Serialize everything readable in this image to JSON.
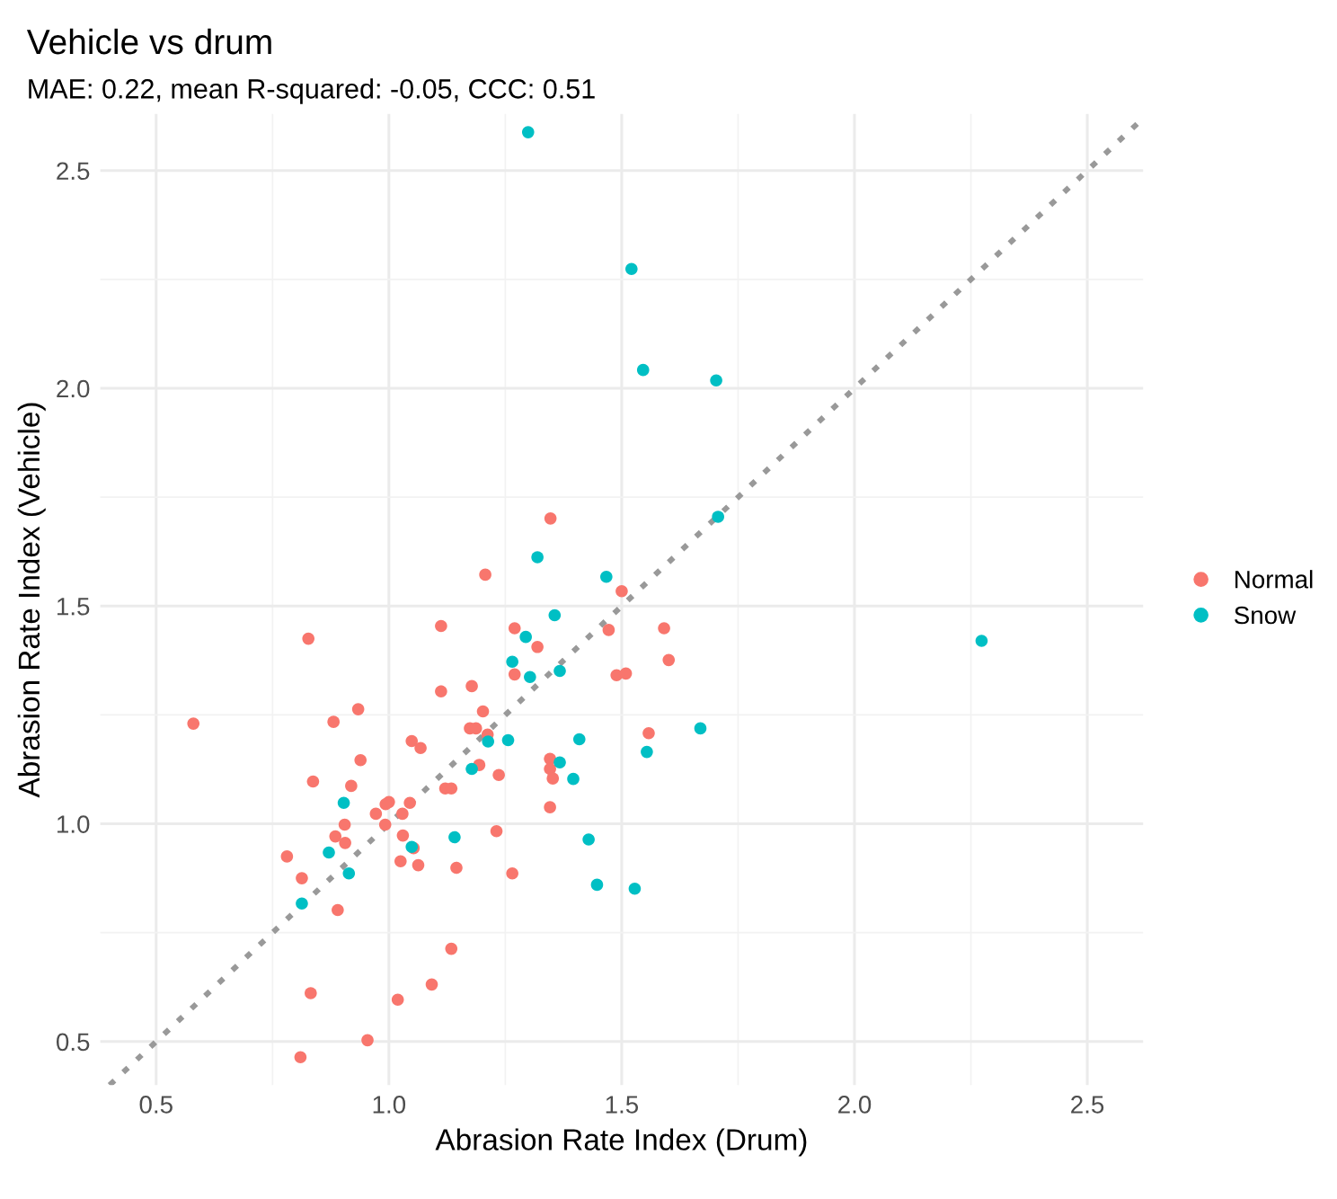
{
  "chart_data": {
    "type": "scatter",
    "title": "Vehicle vs drum",
    "subtitle": "MAE: 0.22, mean R-squared: -0.05, CCC: 0.51",
    "xlabel": "Abrasion Rate Index (Drum)",
    "ylabel": "Abrasion Rate Index (Vehicle)",
    "xlim": [
      0.38,
      2.62
    ],
    "ylim": [
      0.4,
      2.63
    ],
    "xticks": [
      0.5,
      {
        "value": 1.0,
        "label": "1.0"
      },
      1.5,
      {
        "value": 2.0,
        "label": "2.0"
      },
      2.5
    ],
    "yticks": [
      0.5,
      {
        "value": 1.0,
        "label": "1.0"
      },
      1.5,
      {
        "value": 2.0,
        "label": "2.0"
      },
      2.5
    ],
    "grid": true,
    "legend": "right",
    "marker": "circle",
    "series": [
      {
        "name": "Normal",
        "color": "#f8766d",
        "x": [
          0.58,
          0.827,
          1.112,
          1.112,
          0.934,
          0.881,
          1.049,
          1.068,
          0.939,
          0.837,
          0.919,
          1.121,
          1.134,
          1.0,
          0.993,
          1.045,
          0.972,
          1.029,
          0.905,
          0.992,
          0.885,
          0.906,
          1.03,
          1.053,
          0.781,
          1.025,
          1.063,
          0.813,
          0.89,
          1.134,
          0.832,
          1.092,
          1.019,
          0.954,
          0.81,
          1.207,
          1.5,
          1.27,
          1.472,
          1.591,
          1.319,
          1.601,
          1.27,
          1.489,
          1.509,
          1.178,
          1.202,
          1.174,
          1.187,
          1.212,
          1.558,
          1.346,
          1.346,
          1.352,
          1.194,
          1.236,
          1.346,
          1.231,
          1.145,
          1.265,
          1.347
        ],
        "values": [
          1.23,
          1.425,
          1.454,
          1.304,
          1.263,
          1.234,
          1.19,
          1.174,
          1.146,
          1.097,
          1.087,
          1.081,
          1.081,
          1.05,
          1.045,
          1.048,
          1.023,
          1.023,
          0.998,
          0.998,
          0.971,
          0.956,
          0.973,
          0.944,
          0.925,
          0.914,
          0.905,
          0.875,
          0.802,
          0.713,
          0.611,
          0.631,
          0.596,
          0.503,
          0.464,
          1.572,
          1.534,
          1.449,
          1.445,
          1.449,
          1.406,
          1.376,
          1.343,
          1.341,
          1.345,
          1.316,
          1.258,
          1.219,
          1.219,
          1.205,
          1.208,
          1.149,
          1.126,
          1.104,
          1.135,
          1.112,
          1.038,
          0.983,
          0.899,
          0.886,
          1.701
        ]
      },
      {
        "name": "Snow",
        "color": "#00bfc4",
        "x": [
          0.903,
          1.049,
          0.871,
          1.141,
          0.914,
          0.813,
          1.319,
          1.467,
          1.356,
          1.294,
          1.265,
          1.303,
          1.367,
          1.213,
          1.256,
          1.409,
          1.554,
          1.367,
          1.396,
          1.178,
          1.429,
          1.447,
          1.528,
          1.299,
          1.521,
          1.546,
          1.703,
          1.707,
          2.273,
          1.669
        ],
        "values": [
          1.048,
          0.947,
          0.934,
          0.969,
          0.886,
          0.817,
          1.612,
          1.567,
          1.479,
          1.429,
          1.372,
          1.337,
          1.351,
          1.189,
          1.192,
          1.194,
          1.165,
          1.141,
          1.103,
          1.126,
          0.964,
          0.86,
          0.851,
          2.588,
          2.274,
          2.042,
          2.018,
          1.705,
          1.42,
          1.219
        ]
      },
      {
        "type": "line",
        "color": "#999999",
        "line_style": "dotted",
        "marker": "none",
        "x": [
          0.4,
          2.62
        ],
        "values": [
          0.4,
          2.62
        ]
      }
    ]
  }
}
